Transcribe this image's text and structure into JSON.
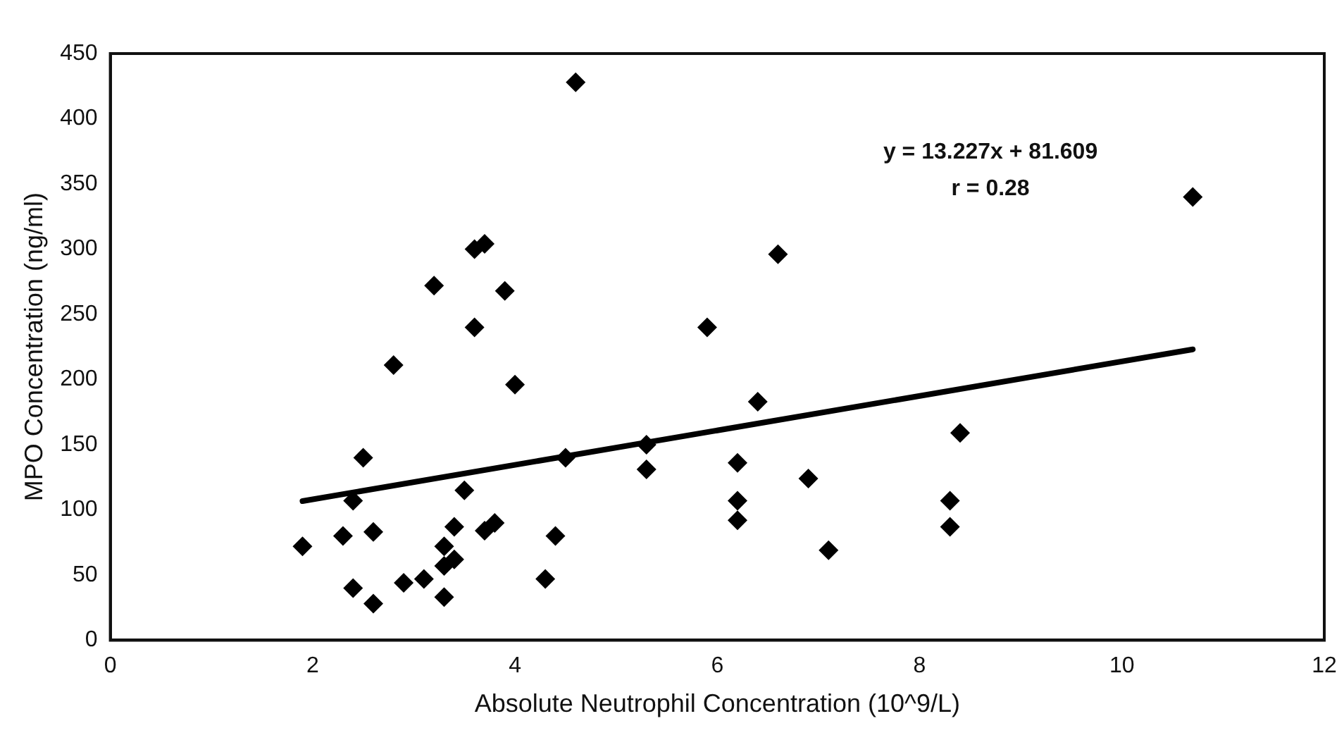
{
  "chart_data": {
    "type": "scatter",
    "xlabel": "Absolute Neutrophil Concentration (10^9/L)",
    "ylabel": "MPO Concentration (ng/ml)",
    "xlim": [
      0,
      12
    ],
    "xticks": [
      0,
      2,
      4,
      6,
      8,
      10,
      12
    ],
    "ylim": [
      0,
      450
    ],
    "yticks": [
      0,
      50,
      100,
      150,
      200,
      250,
      300,
      350,
      400,
      450
    ],
    "grid": false,
    "legend": false,
    "marker": "diamond",
    "annotations": [
      "y = 13.227x + 81.609",
      "r = 0.28"
    ],
    "series": [
      {
        "color": "#000000",
        "x": [
          1.9,
          2.3,
          2.4,
          2.4,
          2.5,
          2.6,
          2.6,
          2.8,
          2.9,
          3.1,
          3.2,
          3.3,
          3.3,
          3.3,
          3.4,
          3.4,
          3.5,
          3.6,
          3.6,
          3.7,
          3.7,
          3.8,
          3.9,
          4.0,
          4.3,
          4.4,
          4.5,
          4.6,
          5.3,
          5.3,
          5.9,
          6.2,
          6.2,
          6.2,
          6.4,
          6.6,
          6.9,
          7.1,
          8.3,
          8.3,
          8.4,
          10.7
        ],
        "values": [
          72,
          80,
          107,
          40,
          140,
          28,
          83,
          211,
          44,
          47,
          272,
          72,
          33,
          57,
          62,
          87,
          115,
          240,
          300,
          304,
          84,
          90,
          268,
          196,
          47,
          80,
          140,
          428,
          150,
          131,
          240,
          136,
          107,
          92,
          183,
          296,
          124,
          69,
          107,
          87,
          159,
          340
        ]
      },
      {
        "type": "line",
        "color": "#000000",
        "marker": "none",
        "line_style": "solid",
        "x": [
          1.9,
          10.7
        ],
        "values": [
          106.7,
          223.1
        ]
      }
    ]
  }
}
